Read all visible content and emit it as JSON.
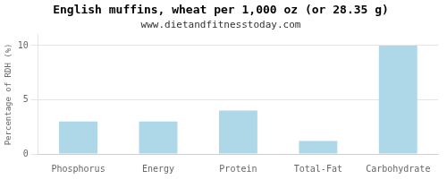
{
  "chart_data": {
    "type": "bar",
    "title": "English muffins, wheat per 1,000 oz (or 28.35 g)",
    "subtitle": "www.dietandfitnesstoday.com",
    "ylabel": "Percentage of RDH (%)",
    "categories": [
      "Phosphorus",
      "Energy",
      "Protein",
      "Total-Fat",
      "Carbohydrate"
    ],
    "values": [
      3.0,
      3.0,
      4.0,
      1.2,
      10.0
    ],
    "color": "#aed8e8",
    "ylim": [
      0,
      11
    ],
    "yticks": [
      0,
      5,
      10
    ],
    "grid": true
  }
}
